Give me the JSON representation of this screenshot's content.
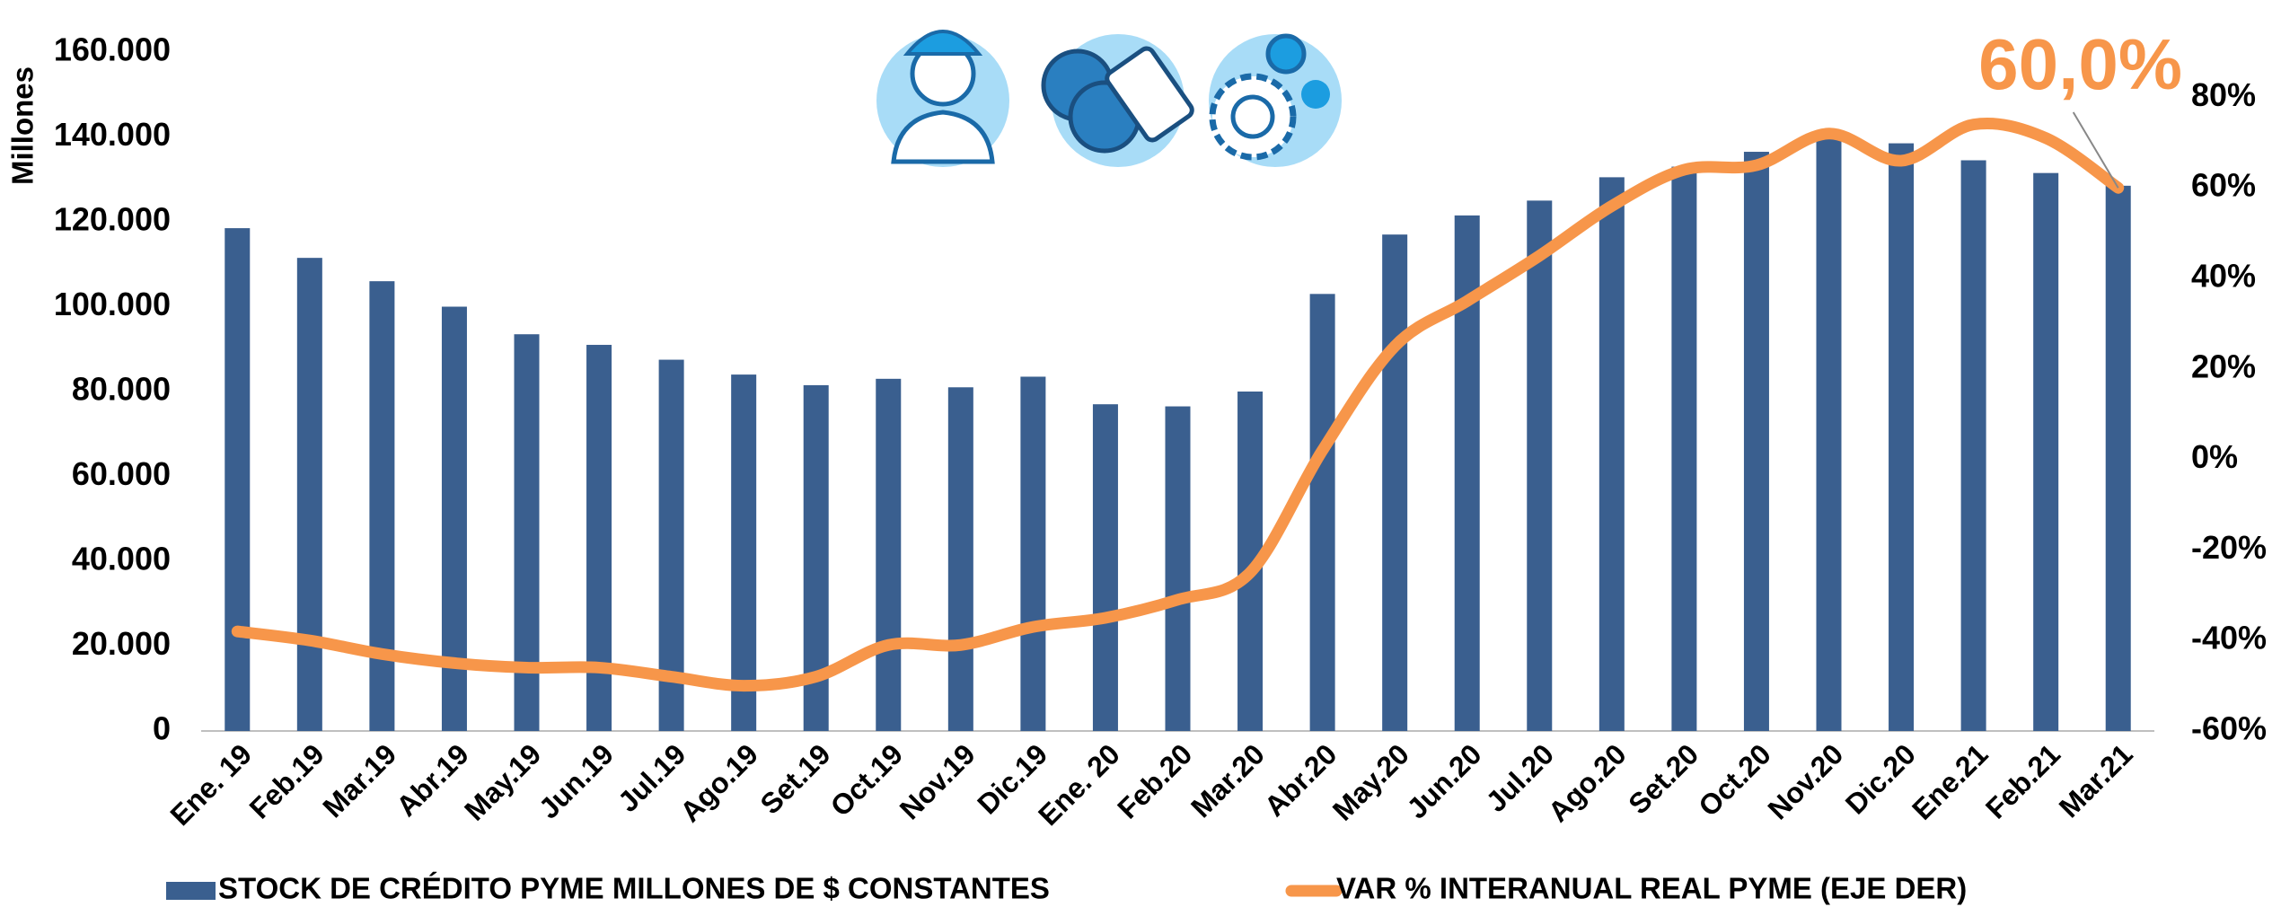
{
  "chart_data": {
    "type": "bar",
    "ylabel": "Millones",
    "annotation": "60,0%",
    "categories": [
      "Ene. 19",
      "Feb.19",
      "Mar.19",
      "Abr.19",
      "May.19",
      "Jun.19",
      "Jul.19",
      "Ago.19",
      "Set.19",
      "Oct.19",
      "Nov.19",
      "Dic.19",
      "Ene. 20",
      "Feb.20",
      "Mar.20",
      "Abr.20",
      "May.20",
      "Jun.20",
      "Jul.20",
      "Ago.20",
      "Set.20",
      "Oct.20",
      "Nov.20",
      "Dic.20",
      "Ene.21",
      "Feb.21",
      "Mar.21"
    ],
    "series": [
      {
        "name": "STOCK DE CRÉDITO PYME MILLONES DE $ CONSTANTES",
        "type": "bar",
        "color": "#3a5f8f",
        "values": [
          118500,
          111500,
          106000,
          100000,
          93500,
          91000,
          87500,
          84000,
          81500,
          83000,
          81000,
          83500,
          77000,
          76500,
          80000,
          103000,
          117000,
          121500,
          125000,
          130500,
          133000,
          136500,
          141000,
          138500,
          134500,
          131500,
          128500
        ]
      },
      {
        "name": "VAR % INTERANUAL REAL PYME (EJE DER)",
        "type": "line",
        "axis": "y2",
        "color": "#f7964a",
        "values": [
          -38,
          -40,
          -43,
          -45,
          -46,
          -46,
          -48,
          -50,
          -48,
          -41,
          -41,
          -37,
          -35,
          -31,
          -25,
          2,
          25,
          35,
          45,
          56,
          64,
          65,
          72,
          66,
          74,
          71,
          60
        ]
      }
    ],
    "ylim": [
      0,
      160000
    ],
    "yticks": [
      0,
      {
        "value": 20000,
        "label": "20.000"
      },
      {
        "value": 40000,
        "label": "40.000"
      },
      {
        "value": 60000,
        "label": "60.000"
      },
      {
        "value": 80000,
        "label": "80.000"
      },
      {
        "value": 100000,
        "label": "100.000"
      },
      {
        "value": 120000,
        "label": "120.000"
      },
      {
        "value": 140000,
        "label": "140.000"
      },
      {
        "value": 160000,
        "label": "160.000"
      }
    ],
    "y2lim": [
      -60,
      90
    ],
    "y2ticks": [
      {
        "value": -60,
        "label": "-60%"
      },
      {
        "value": -40,
        "label": "-40%"
      },
      {
        "value": -20,
        "label": "-20%"
      },
      {
        "value": 0,
        "label": "0%"
      },
      {
        "value": 20,
        "label": "20%"
      },
      {
        "value": 40,
        "label": "40%"
      },
      {
        "value": 60,
        "label": "60%"
      },
      {
        "value": 80,
        "label": "80%"
      }
    ]
  }
}
